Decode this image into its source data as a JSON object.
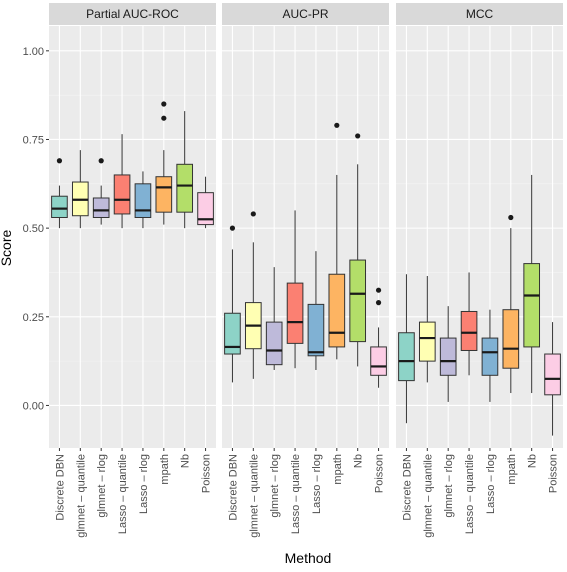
{
  "chart_data": {
    "type": "boxplot",
    "xlabel": "Method",
    "ylabel": "Score",
    "ylim": [
      -0.12,
      1.07
    ],
    "y_ticks": [
      0.0,
      0.25,
      0.5,
      0.75,
      1.0
    ],
    "y_tick_labels": [
      "0.00",
      "0.25",
      "0.50",
      "0.75",
      "1.00"
    ],
    "grid": true,
    "legend": "none",
    "methods": [
      "Discrete DBN",
      "glmnet – quantile",
      "glmnet – rlog",
      "Lasso – quantile",
      "Lasso – rlog",
      "mpath",
      "Nb",
      "Poisson"
    ],
    "colors": [
      "#8DD3C7",
      "#FFFFB3",
      "#BEBADA",
      "#FB8072",
      "#80B1D3",
      "#FDB462",
      "#B3DE69",
      "#FCCDE5"
    ],
    "panels": [
      {
        "title": "Partial AUC-ROC",
        "boxes": [
          {
            "min": 0.5,
            "q1": 0.53,
            "median": 0.555,
            "q3": 0.59,
            "max": 0.62,
            "outliers": [
              0.69
            ]
          },
          {
            "min": 0.5,
            "q1": 0.535,
            "median": 0.58,
            "q3": 0.63,
            "max": 0.72,
            "outliers": []
          },
          {
            "min": 0.51,
            "q1": 0.53,
            "median": 0.55,
            "q3": 0.585,
            "max": 0.62,
            "outliers": [
              0.69
            ]
          },
          {
            "min": 0.5,
            "q1": 0.54,
            "median": 0.58,
            "q3": 0.65,
            "max": 0.765,
            "outliers": []
          },
          {
            "min": 0.5,
            "q1": 0.53,
            "median": 0.55,
            "q3": 0.625,
            "max": 0.66,
            "outliers": []
          },
          {
            "min": 0.51,
            "q1": 0.545,
            "median": 0.615,
            "q3": 0.645,
            "max": 0.72,
            "outliers": [
              0.85,
              0.81
            ]
          },
          {
            "min": 0.5,
            "q1": 0.545,
            "median": 0.62,
            "q3": 0.68,
            "max": 0.83,
            "outliers": []
          },
          {
            "min": 0.5,
            "q1": 0.51,
            "median": 0.525,
            "q3": 0.6,
            "max": 0.645,
            "outliers": []
          }
        ]
      },
      {
        "title": "AUC-PR",
        "boxes": [
          {
            "min": 0.065,
            "q1": 0.145,
            "median": 0.165,
            "q3": 0.26,
            "max": 0.44,
            "outliers": [
              0.5
            ]
          },
          {
            "min": 0.075,
            "q1": 0.16,
            "median": 0.225,
            "q3": 0.29,
            "max": 0.46,
            "outliers": [
              0.54
            ]
          },
          {
            "min": 0.1,
            "q1": 0.115,
            "median": 0.155,
            "q3": 0.235,
            "max": 0.39,
            "outliers": []
          },
          {
            "min": 0.105,
            "q1": 0.175,
            "median": 0.235,
            "q3": 0.345,
            "max": 0.55,
            "outliers": []
          },
          {
            "min": 0.1,
            "q1": 0.14,
            "median": 0.15,
            "q3": 0.285,
            "max": 0.435,
            "outliers": []
          },
          {
            "min": 0.13,
            "q1": 0.165,
            "median": 0.205,
            "q3": 0.37,
            "max": 0.65,
            "outliers": [
              0.79
            ]
          },
          {
            "min": 0.11,
            "q1": 0.18,
            "median": 0.315,
            "q3": 0.41,
            "max": 0.68,
            "outliers": [
              0.76
            ]
          },
          {
            "min": 0.05,
            "q1": 0.085,
            "median": 0.11,
            "q3": 0.165,
            "max": 0.22,
            "outliers": [
              0.325,
              0.29
            ]
          }
        ]
      },
      {
        "title": "MCC",
        "boxes": [
          {
            "min": -0.05,
            "q1": 0.07,
            "median": 0.125,
            "q3": 0.205,
            "max": 0.37,
            "outliers": []
          },
          {
            "min": 0.065,
            "q1": 0.125,
            "median": 0.19,
            "q3": 0.235,
            "max": 0.365,
            "outliers": []
          },
          {
            "min": 0.01,
            "q1": 0.085,
            "median": 0.125,
            "q3": 0.19,
            "max": 0.28,
            "outliers": []
          },
          {
            "min": 0.085,
            "q1": 0.155,
            "median": 0.205,
            "q3": 0.265,
            "max": 0.375,
            "outliers": []
          },
          {
            "min": 0.01,
            "q1": 0.085,
            "median": 0.15,
            "q3": 0.19,
            "max": 0.27,
            "outliers": []
          },
          {
            "min": 0.035,
            "q1": 0.105,
            "median": 0.16,
            "q3": 0.27,
            "max": 0.5,
            "outliers": [
              0.53
            ]
          },
          {
            "min": 0.035,
            "q1": 0.165,
            "median": 0.31,
            "q3": 0.4,
            "max": 0.65,
            "outliers": []
          },
          {
            "min": -0.085,
            "q1": 0.03,
            "median": 0.075,
            "q3": 0.145,
            "max": 0.235,
            "outliers": []
          }
        ]
      }
    ]
  }
}
